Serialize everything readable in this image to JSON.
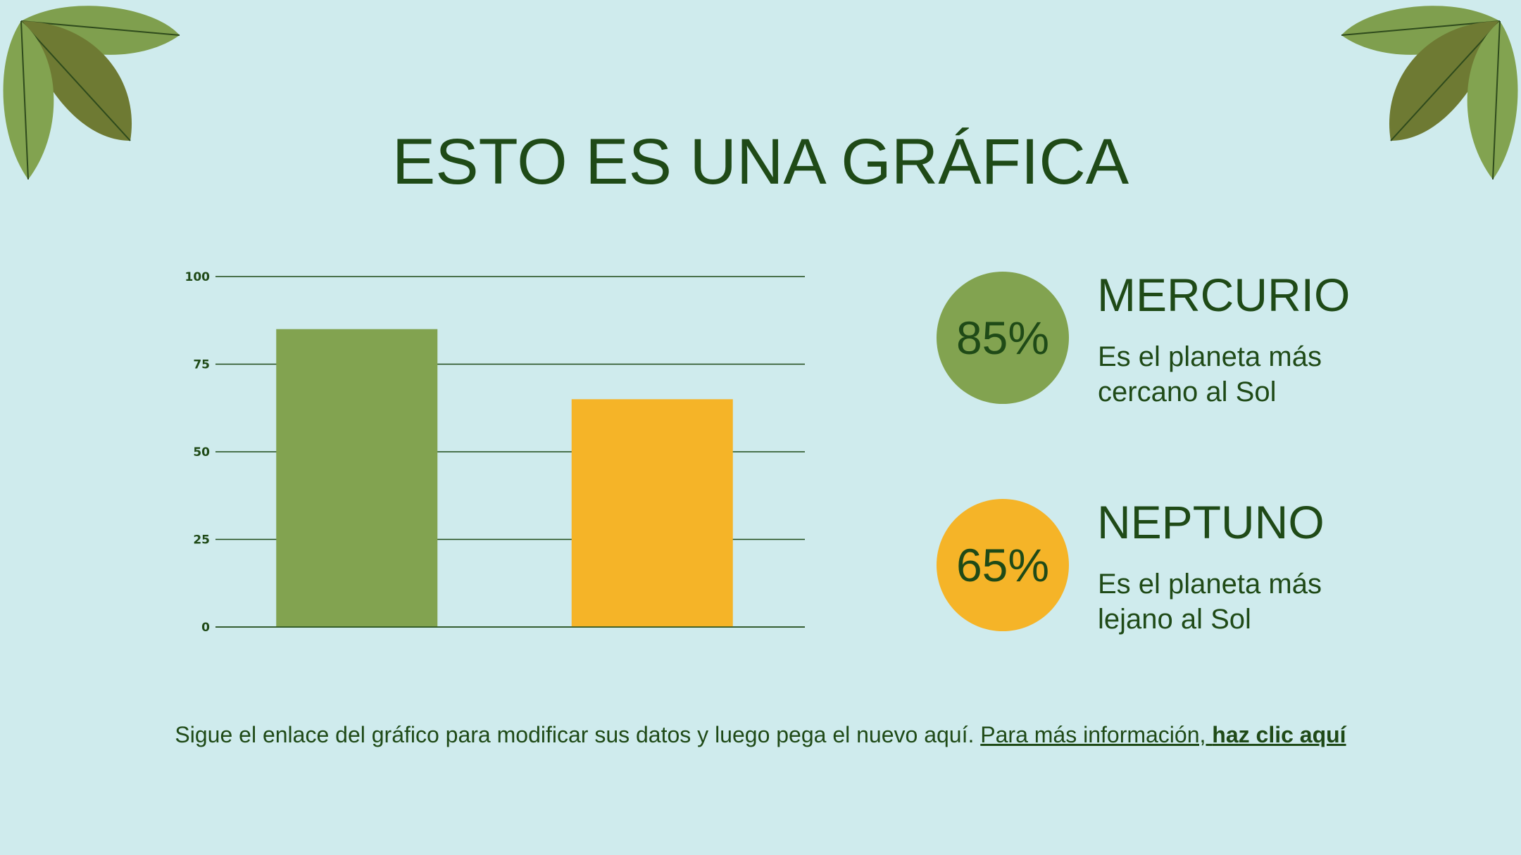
{
  "title": "ESTO ES UNA GRÁFICA",
  "colors": {
    "green": "#82a350",
    "yellow": "#f5b428",
    "text": "#1f4a17",
    "background": "#cfebed"
  },
  "chart_data": {
    "type": "bar",
    "categories": [
      "Mercurio",
      "Neptuno"
    ],
    "values": [
      85,
      65
    ],
    "colors": [
      "#82a350",
      "#f5b428"
    ],
    "ylim": [
      0,
      100
    ],
    "yticks": [
      "0",
      "25",
      "50",
      "75",
      "100"
    ],
    "grid": true
  },
  "stats": [
    {
      "percent": "85%",
      "name": "MERCURIO",
      "desc_line1": "Es el planeta más",
      "desc_line2": "cercano al Sol"
    },
    {
      "percent": "65%",
      "name": "NEPTUNO",
      "desc_line1": "Es el planeta más",
      "desc_line2": "lejano al Sol"
    }
  ],
  "footer": {
    "text": "Sigue el enlace del gráfico para modificar sus datos y luego pega el nuevo aquí.",
    "link_prefix": "Para más información,",
    "link_bold": "haz clic aquí"
  }
}
